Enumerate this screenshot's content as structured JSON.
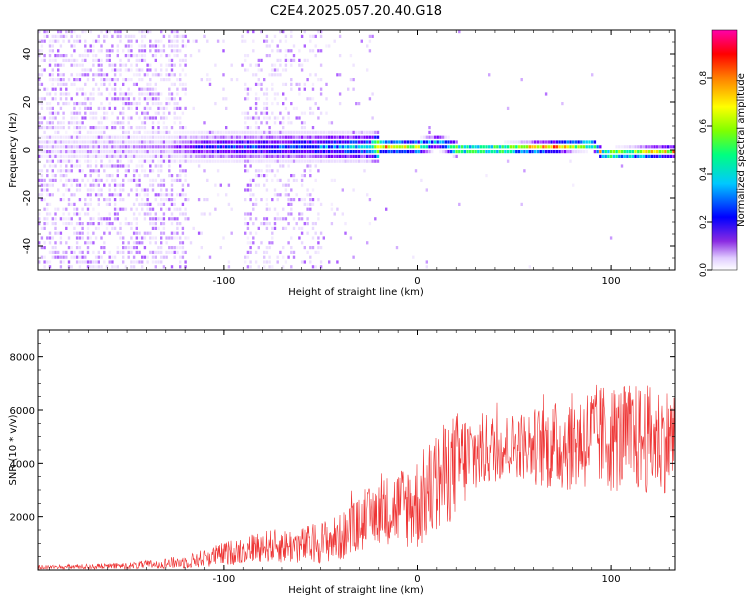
{
  "title": "C2E4.2025.057.20.40.G18",
  "colors": {
    "snr_line": "#ee3333",
    "background": "#ffffff",
    "frame": "#000000"
  },
  "chart_data": [
    {
      "type": "heatmap",
      "xlabel": "Height of straight line (km)",
      "ylabel": "Frequency (Hz)",
      "xlim": [
        -196,
        133
      ],
      "ylim": [
        -50,
        50
      ],
      "x_ticks": [
        -100,
        0,
        100
      ],
      "y_ticks": [
        -40,
        -20,
        0,
        20,
        40
      ],
      "colorbar": {
        "label": "Normalized spectral amplitude",
        "range": [
          0,
          1
        ],
        "ticks": [
          "0.0",
          "0.2",
          "0.4",
          "0.6",
          "0.8"
        ],
        "tick_values": [
          0.0,
          0.2,
          0.4,
          0.6,
          0.8
        ],
        "colormap": [
          "#ffffff",
          "#e8d8ff",
          "#7f00ff",
          "#0000ff",
          "#00d0ff",
          "#00ff80",
          "#80ff00",
          "#ffff00",
          "#ff8000",
          "#ff0000",
          "#ff00aa"
        ]
      },
      "ridge": [
        [
          -196,
          0
        ],
        [
          -120,
          0
        ],
        [
          -60,
          0
        ],
        [
          -20,
          0
        ],
        [
          0,
          0
        ],
        [
          10,
          2
        ],
        [
          20,
          -1
        ],
        [
          40,
          -1
        ],
        [
          70,
          0
        ],
        [
          90,
          1
        ],
        [
          95,
          -3
        ],
        [
          133,
          -2
        ]
      ],
      "ridge_amplitude": [
        [
          -196,
          0.1
        ],
        [
          -130,
          0.15
        ],
        [
          -110,
          0.3
        ],
        [
          -60,
          0.35
        ],
        [
          -25,
          0.45
        ],
        [
          -20,
          0.85
        ],
        [
          -10,
          0.7
        ],
        [
          0,
          0.7
        ],
        [
          10,
          0.4
        ],
        [
          20,
          0.75
        ],
        [
          40,
          0.8
        ],
        [
          70,
          0.85
        ],
        [
          90,
          0.7
        ],
        [
          100,
          0.8
        ],
        [
          133,
          0.8
        ]
      ]
    },
    {
      "type": "line",
      "xlabel": "Height of straight line (km)",
      "ylabel": "SNR (10 * v/v)",
      "xlim": [
        -196,
        133
      ],
      "ylim": [
        0,
        9000
      ],
      "x_ticks": [
        -100,
        0,
        100
      ],
      "y_ticks": [
        2000,
        4000,
        6000,
        8000
      ],
      "series": [
        {
          "values_envelope": [
            [
              -196,
              100
            ],
            [
              -150,
              150
            ],
            [
              -120,
              300
            ],
            [
              -100,
              600
            ],
            [
              -80,
              900
            ],
            [
              -60,
              900
            ],
            [
              -40,
              1200
            ],
            [
              -20,
              2200
            ],
            [
              0,
              2500
            ],
            [
              10,
              3200
            ],
            [
              20,
              4000
            ],
            [
              35,
              4500
            ],
            [
              50,
              4700
            ],
            [
              70,
              4600
            ],
            [
              90,
              5000
            ],
            [
              110,
              4900
            ],
            [
              133,
              4900
            ]
          ],
          "noise_envelope": [
            [
              -196,
              80
            ],
            [
              -150,
              120
            ],
            [
              -120,
              250
            ],
            [
              -100,
              450
            ],
            [
              -80,
              600
            ],
            [
              -60,
              700
            ],
            [
              -40,
              900
            ],
            [
              -20,
              1200
            ],
            [
              0,
              1800
            ],
            [
              10,
              2000
            ],
            [
              20,
              2000
            ],
            [
              35,
              1400
            ],
            [
              50,
              1200
            ],
            [
              70,
              1700
            ],
            [
              90,
              2000
            ],
            [
              110,
              2100
            ],
            [
              133,
              2000
            ]
          ]
        }
      ]
    }
  ]
}
